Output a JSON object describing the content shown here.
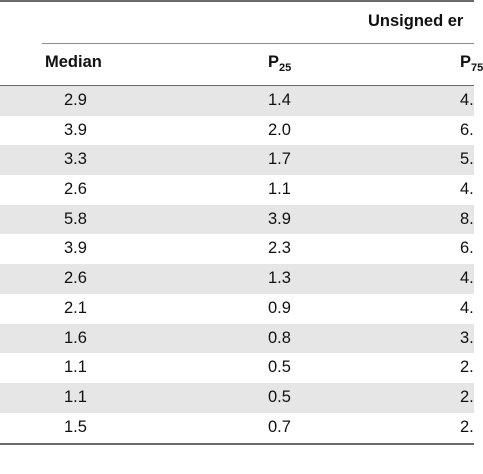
{
  "table": {
    "group_header": "Unsigned er",
    "columns": {
      "median": "Median",
      "p25_base": "P",
      "p25_sub": "25",
      "p75_base": "P",
      "p75_sub": "75"
    },
    "rows": [
      {
        "median": "2.9",
        "p25": "1.4",
        "p75": "4."
      },
      {
        "median": "3.9",
        "p25": "2.0",
        "p75": "6."
      },
      {
        "median": "3.3",
        "p25": "1.7",
        "p75": "5."
      },
      {
        "median": "2.6",
        "p25": "1.1",
        "p75": "4."
      },
      {
        "median": "5.8",
        "p25": "3.9",
        "p75": "8."
      },
      {
        "median": "3.9",
        "p25": "2.3",
        "p75": "6."
      },
      {
        "median": "2.6",
        "p25": "1.3",
        "p75": "4."
      },
      {
        "median": "2.1",
        "p25": "0.9",
        "p75": "4."
      },
      {
        "median": "1.6",
        "p25": "0.8",
        "p75": "3."
      },
      {
        "median": "1.1",
        "p25": "0.5",
        "p75": "2."
      },
      {
        "median": "1.1",
        "p25": "0.5",
        "p75": "2."
      },
      {
        "median": "1.5",
        "p25": "0.7",
        "p75": "2."
      }
    ]
  }
}
